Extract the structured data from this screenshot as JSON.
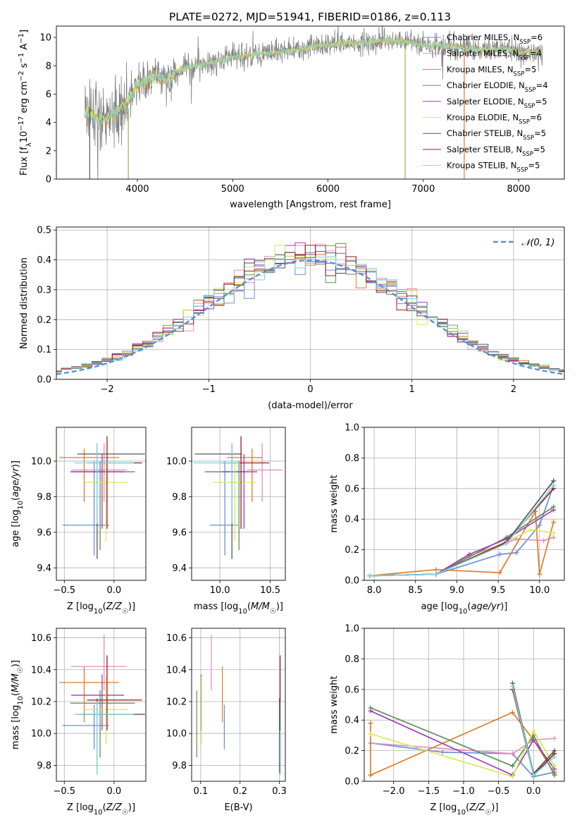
{
  "figure": {
    "title": "PLATE=0272, MJD=51941, FIBERID=0186, z=0.113"
  },
  "legend_top": [
    {
      "label": "Chabrier MILES, N",
      "sub": "SSP",
      "suffix": "=6",
      "color": "#6b8fd9"
    },
    {
      "label": "Salpeter MILES, N",
      "sub": "SSP",
      "suffix": "=4",
      "color": "#e58fbf"
    },
    {
      "label": "Kroupa MILES, N",
      "sub": "SSP",
      "suffix": "=5",
      "color": "#e07b2a"
    },
    {
      "label": "Chabrier ELODIE, N",
      "sub": "SSP",
      "suffix": "=4",
      "color": "#5e8f55"
    },
    {
      "label": "Salpeter ELODIE, N",
      "sub": "SSP",
      "suffix": "=5",
      "color": "#9b3fb5"
    },
    {
      "label": "Kroupa ELODIE, N",
      "sub": "SSP",
      "suffix": "=6",
      "color": "#d9e85a"
    },
    {
      "label": "Chabrier STELIB, N",
      "sub": "SSP",
      "suffix": "=5",
      "color": "#555555"
    },
    {
      "label": "Salpeter STELIB, N",
      "sub": "SSP",
      "suffix": "=5",
      "color": "#9e1b1b"
    },
    {
      "label": "Kroupa STELIB, N",
      "sub": "SSP",
      "suffix": "=5",
      "color": "#7fd6e0"
    }
  ],
  "legend_hist": {
    "label": "𝒩(0, 1)",
    "color": "#5b8fd9"
  },
  "chart_data": [
    {
      "type": "line",
      "id": "spectrum",
      "title": "PLATE=0272, MJD=51941, FIBERID=0186, z=0.113",
      "xlabel": "wavelength [Angstrom, rest frame]",
      "ylabel": "Flux [f_λ10^-17 erg cm^-2 s^-1 A^-1]",
      "xlim": [
        3150,
        8480
      ],
      "ylim": [
        0,
        10.8
      ],
      "xticks": [
        4000,
        5000,
        6000,
        7000,
        8000
      ],
      "yticks": [
        0,
        2,
        4,
        6,
        8,
        10
      ],
      "grid": false,
      "data_color": "#808080",
      "model_color": "#7fd6e0",
      "continuum_x": [
        3450,
        3600,
        3700,
        3800,
        3900,
        4000,
        4100,
        4200,
        4300,
        4400,
        4500,
        4600,
        4700,
        4800,
        5000,
        5200,
        5400,
        5600,
        5800,
        6000,
        6200,
        6400,
        6600,
        6800,
        7000,
        7200,
        7400,
        7600,
        7800,
        8000,
        8250
      ],
      "continuum_y": [
        4.8,
        4.2,
        4.3,
        5.0,
        5.4,
        6.7,
        6.9,
        7.3,
        7.0,
        7.5,
        7.8,
        8.0,
        8.1,
        8.3,
        8.6,
        8.8,
        8.9,
        9.1,
        9.3,
        9.5,
        9.6,
        9.6,
        9.8,
        9.7,
        9.5,
        9.4,
        9.3,
        9.1,
        9.2,
        9.0,
        8.9
      ],
      "legend_position": "upper right"
    },
    {
      "type": "step",
      "id": "residuals",
      "xlabel": "(data-model)/error",
      "ylabel": "Normed distribution",
      "xlim": [
        -2.5,
        2.5
      ],
      "ylim": [
        0,
        0.51
      ],
      "xticks": [
        -2,
        -1,
        0,
        1,
        2
      ],
      "yticks": [
        0.0,
        0.1,
        0.2,
        0.3,
        0.4,
        0.5
      ],
      "grid": true,
      "bin_width": 0.1,
      "legend_position": "upper right"
    },
    {
      "type": "scatter",
      "id": "age_vs_Z",
      "xlabel": "Z [log10(Z/Z☉)]",
      "ylabel": "age  [log10(age/yr)]",
      "xlim": [
        -0.58,
        0.32
      ],
      "ylim": [
        9.33,
        10.19
      ],
      "xticks": [
        -0.5,
        0.0
      ],
      "yticks": [
        9.4,
        9.6,
        9.8,
        10.0
      ],
      "grid": true
    },
    {
      "type": "scatter",
      "id": "age_vs_mass",
      "xlabel": "mass [log10(M/M☉)]",
      "ylabel": "",
      "xlim": [
        9.72,
        10.65
      ],
      "ylim": [
        9.33,
        10.19
      ],
      "xticks": [
        10.0,
        10.5
      ],
      "yticks": [
        9.4,
        9.6,
        9.8,
        10.0
      ],
      "grid": true
    },
    {
      "type": "line",
      "id": "weight_vs_age",
      "xlabel": "age  [log10(age/yr)]",
      "ylabel": "mass weight",
      "xlim": [
        7.88,
        10.3
      ],
      "ylim": [
        0,
        1.0
      ],
      "xticks": [
        8.0,
        8.5,
        9.0,
        9.5,
        10.0
      ],
      "yticks": [
        0.0,
        0.2,
        0.4,
        0.6,
        0.8,
        1.0
      ],
      "grid": true
    },
    {
      "type": "scatter",
      "id": "mass_vs_Z",
      "xlabel": "Z [log10(Z/Z☉)]",
      "ylabel": "mass [log10(M/M☉)]",
      "xlim": [
        -0.58,
        0.32
      ],
      "ylim": [
        9.7,
        10.66
      ],
      "xticks": [
        -0.5,
        0.0
      ],
      "yticks": [
        9.8,
        10.0,
        10.2,
        10.4,
        10.6
      ],
      "grid": true
    },
    {
      "type": "scatter",
      "id": "mass_vs_ebv",
      "xlabel": "E(B-V)",
      "ylabel": "",
      "xlim": [
        0.077,
        0.315
      ],
      "ylim": [
        9.7,
        10.66
      ],
      "xticks": [
        0.1,
        0.2,
        0.3
      ],
      "yticks": [
        9.8,
        10.0,
        10.2,
        10.4,
        10.6
      ],
      "grid": true
    },
    {
      "type": "line",
      "id": "weight_vs_Z",
      "xlabel": "Z [log10(Z/Z☉)]",
      "ylabel": "mass weight",
      "xlim": [
        -2.42,
        0.44
      ],
      "ylim": [
        0,
        1.0
      ],
      "xticks": [
        -2.0,
        -1.5,
        -1.0,
        -0.5,
        0.0
      ],
      "yticks": [
        0.0,
        0.2,
        0.4,
        0.6,
        0.8,
        1.0
      ],
      "grid": true
    }
  ],
  "models": [
    {
      "name": "Chabrier MILES",
      "color": "#6b8fd9",
      "age": 9.64,
      "age_lo": 9.47,
      "age_hi": 10.0,
      "Z": -0.2,
      "Z_lo": -0.52,
      "Z_hi": -0.05,
      "mass": 10.05,
      "mass_lo": 9.9,
      "mass_hi": 10.18,
      "ebv": 0.16,
      "ebv_lo": 9.9,
      "ebv_hi": 10.25,
      "wa_x": [
        7.95,
        8.75,
        9.52,
        9.72,
        10.0,
        10.17
      ],
      "wa_y": [
        0.03,
        0.04,
        0.17,
        0.18,
        0.36,
        0.62
      ],
      "wz_x": [
        -2.33,
        -1.3,
        -0.3,
        0.0,
        0.3
      ],
      "wz_y": [
        0.25,
        0.19,
        0.18,
        0.03,
        0.06
      ]
    },
    {
      "name": "Salpeter MILES",
      "color": "#e58fbf",
      "age": 9.95,
      "age_lo": 9.77,
      "age_hi": 10.1,
      "Z": -0.1,
      "Z_lo": -0.43,
      "Z_hi": 0.13,
      "mass": 10.42,
      "mass_lo": 10.27,
      "mass_hi": 10.62,
      "ebv": 0.127,
      "ebv_lo": 10.27,
      "ebv_hi": 10.62,
      "wa_x": [
        7.95,
        8.75,
        9.15,
        9.72,
        10.05,
        10.17
      ],
      "wa_y": [
        0.03,
        0.04,
        0.16,
        0.27,
        0.26,
        0.28
      ],
      "wz_x": [
        -2.33,
        -0.3,
        0.0,
        0.3
      ],
      "wz_y": [
        0.25,
        0.18,
        0.27,
        0.28
      ]
    },
    {
      "name": "Kroupa MILES",
      "color": "#e07b2a",
      "age": 10.02,
      "age_lo": 9.77,
      "age_hi": 10.07,
      "Z": -0.3,
      "Z_lo": -0.55,
      "Z_hi": 0.05,
      "mass": 10.32,
      "mass_lo": 10.07,
      "mass_hi": 10.42,
      "ebv": 0.155,
      "ebv_lo": 10.07,
      "ebv_hi": 10.42,
      "wa_x": [
        7.95,
        8.75,
        9.52,
        9.95,
        10.0,
        10.17
      ],
      "wa_y": [
        0.03,
        0.07,
        0.05,
        0.45,
        0.04,
        0.38
      ],
      "wz_x": [
        -2.33,
        -2.33,
        -0.3,
        0.0,
        0.3
      ],
      "wz_y": [
        0.38,
        0.04,
        0.45,
        0.27,
        0.05
      ]
    },
    {
      "name": "Chabrier ELODIE",
      "color": "#5e8f55",
      "age": 9.94,
      "age_lo": 9.5,
      "age_hi": 10.0,
      "Z": -0.14,
      "Z_lo": -0.44,
      "Z_hi": 0.21,
      "mass": 10.19,
      "mass_lo": 9.85,
      "mass_hi": 10.27,
      "ebv": 0.09,
      "ebv_lo": 9.85,
      "ebv_hi": 10.42,
      "wa_x": [
        7.95,
        8.75,
        9.6,
        10.17
      ],
      "wa_y": [
        0.03,
        0.04,
        0.28,
        0.48
      ],
      "wz_x": [
        -2.33,
        -0.3,
        0.0,
        0.3
      ],
      "wz_y": [
        0.48,
        0.1,
        0.3,
        0.04
      ]
    },
    {
      "name": "Salpeter ELODIE",
      "color": "#9b3fb5",
      "age": 9.94,
      "age_lo": 9.62,
      "age_hi": 10.04,
      "Z": -0.12,
      "Z_lo": -0.43,
      "Z_hi": 0.1,
      "mass": 10.24,
      "mass_lo": 10.02,
      "mass_hi": 10.37,
      "ebv": 0.101,
      "ebv_lo": 10.02,
      "ebv_hi": 10.37,
      "wa_x": [
        7.95,
        8.75,
        9.15,
        9.6,
        10.17
      ],
      "wa_y": [
        0.03,
        0.04,
        0.17,
        0.27,
        0.46
      ],
      "wz_x": [
        -2.33,
        -0.3,
        0.0,
        0.3
      ],
      "wz_y": [
        0.46,
        0.04,
        0.27,
        0.08
      ]
    },
    {
      "name": "Kroupa ELODIE",
      "color": "#d9e85a",
      "age": 9.88,
      "age_lo": 9.55,
      "age_hi": 10.0,
      "Z": -0.08,
      "Z_lo": -0.3,
      "Z_hi": 0.14,
      "mass": 10.15,
      "mass_lo": 9.93,
      "mass_hi": 10.36,
      "ebv": 0.102,
      "ebv_lo": 9.93,
      "ebv_hi": 10.36,
      "wa_x": [
        7.95,
        8.75,
        9.9,
        10.17
      ],
      "wa_y": [
        0.03,
        0.04,
        0.33,
        0.31
      ],
      "wz_x": [
        -2.33,
        -0.3,
        0.0,
        0.3
      ],
      "wz_y": [
        0.31,
        0.03,
        0.33,
        0.1
      ]
    },
    {
      "name": "Chabrier STELIB",
      "color": "#555555",
      "age": 10.04,
      "age_lo": 9.45,
      "age_hi": 10.1,
      "Z": -0.17,
      "Z_lo": -0.37,
      "Z_hi": 0.31,
      "mass": 10.12,
      "mass_lo": 9.75,
      "mass_hi": 10.22,
      "ebv": 0.3,
      "ebv_lo": 9.75,
      "ebv_hi": 10.45,
      "wa_x": [
        7.95,
        8.75,
        9.6,
        10.17
      ],
      "wa_y": [
        0.03,
        0.04,
        0.25,
        0.65
      ],
      "wz_x": [
        -0.3,
        0.0,
        0.3
      ],
      "wz_y": [
        0.64,
        0.05,
        0.2
      ]
    },
    {
      "name": "Salpeter STELIB",
      "color": "#9e1b1b",
      "age": 9.99,
      "age_lo": 9.62,
      "age_hi": 10.14,
      "Z": -0.07,
      "Z_lo": -0.27,
      "Z_hi": 0.28,
      "mass": 10.21,
      "mass_lo": 10.02,
      "mass_hi": 10.49,
      "ebv": 0.302,
      "ebv_lo": 10.02,
      "ebv_hi": 10.49,
      "wa_x": [
        7.95,
        8.75,
        9.6,
        10.17
      ],
      "wa_y": [
        0.03,
        0.04,
        0.25,
        0.6
      ],
      "wz_x": [
        -0.3,
        0.0,
        0.3
      ],
      "wz_y": [
        0.6,
        0.04,
        0.18
      ]
    },
    {
      "name": "Kroupa STELIB",
      "color": "#7fd6e0",
      "age": 9.99,
      "age_lo": 9.65,
      "age_hi": 10.1,
      "Z": -0.17,
      "Z_lo": -0.4,
      "Z_hi": 0.2,
      "mass": 10.12,
      "mass_lo": 9.74,
      "mass_hi": 10.2,
      "ebv": 0.303,
      "ebv_lo": 9.74,
      "ebv_hi": 10.2,
      "wa_x": [
        7.95,
        8.75,
        9.6,
        10.17
      ],
      "wa_y": [
        0.03,
        0.04,
        0.24,
        0.62
      ],
      "wz_x": [
        -0.3,
        0.0,
        0.3
      ],
      "wz_y": [
        0.62,
        0.04,
        0.16
      ]
    }
  ]
}
